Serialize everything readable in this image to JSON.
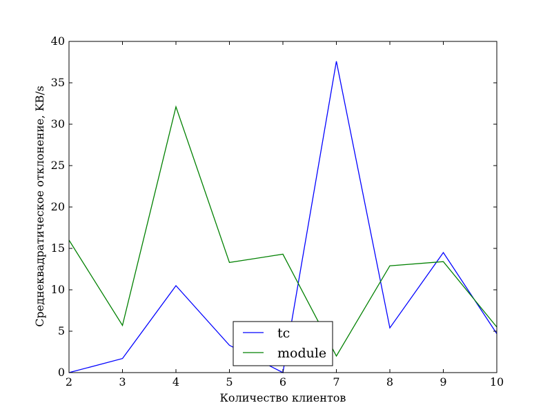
{
  "chart_data": {
    "type": "line",
    "title": "",
    "xlabel": "Количество клиентов",
    "ylabel": "Среднеквадратическое отклонение, KB/s",
    "xlim": [
      2,
      10
    ],
    "ylim": [
      0,
      40
    ],
    "x_ticks": [
      "2",
      "3",
      "4",
      "5",
      "6",
      "7",
      "8",
      "9",
      "10"
    ],
    "y_ticks": [
      "0",
      "5",
      "10",
      "15",
      "20",
      "25",
      "30",
      "35",
      "40"
    ],
    "x": [
      2,
      3,
      4,
      5,
      6,
      7,
      8,
      9,
      10
    ],
    "series": [
      {
        "name": "tc",
        "color": "#0000ff",
        "values": [
          0.0,
          1.7,
          10.5,
          3.3,
          0.0,
          37.6,
          5.4,
          14.5,
          4.7
        ]
      },
      {
        "name": "module",
        "color": "#008000",
        "values": [
          16.0,
          5.7,
          32.1,
          13.3,
          14.3,
          2.0,
          12.9,
          13.4,
          5.5
        ]
      }
    ],
    "grid": false,
    "legend_position": "lower center"
  }
}
